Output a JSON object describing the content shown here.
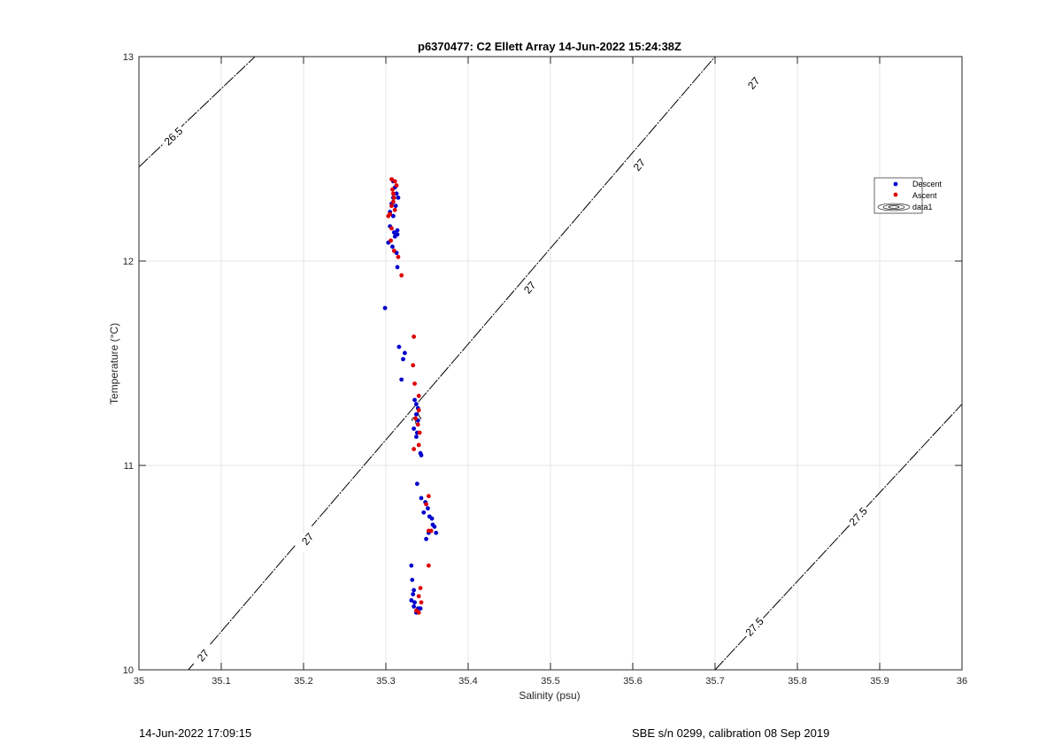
{
  "chart_data": {
    "type": "scatter",
    "title": "p6370477: C2 Ellett Array 14-Jun-2022 15:24:38Z",
    "xlabel": "Salinity (psu)",
    "ylabel": "Temperature (°C)",
    "xlim": [
      35,
      36
    ],
    "ylim": [
      10,
      13
    ],
    "x_ticks": [
      35,
      35.1,
      35.2,
      35.3,
      35.4,
      35.5,
      35.6,
      35.7,
      35.8,
      35.9,
      36
    ],
    "x_tick_labels": [
      "35",
      "35.1",
      "35.2",
      "35.3",
      "35.4",
      "35.5",
      "35.6",
      "35.7",
      "35.8",
      "35.9",
      "36"
    ],
    "y_ticks": [
      10,
      11,
      12,
      13
    ],
    "y_tick_labels": [
      "10",
      "11",
      "12",
      "13"
    ],
    "grid": true,
    "legend_position": "top-right",
    "legend": [
      "Descent",
      "Ascent",
      "data1"
    ],
    "colors": {
      "descent": "#0000cc",
      "ascent": "#dd0000",
      "contour": "#000000",
      "grid": "#e6e6e6",
      "axis": "#262626"
    },
    "series": [
      {
        "name": "Descent",
        "points": [
          [
            35.309,
            12.39
          ],
          [
            35.311,
            12.36
          ],
          [
            35.313,
            12.33
          ],
          [
            35.309,
            12.31
          ],
          [
            35.315,
            12.31
          ],
          [
            35.307,
            12.28
          ],
          [
            35.312,
            12.27
          ],
          [
            35.305,
            12.24
          ],
          [
            35.309,
            12.22
          ],
          [
            35.305,
            12.17
          ],
          [
            35.31,
            12.14
          ],
          [
            35.314,
            12.15
          ],
          [
            35.311,
            12.12
          ],
          [
            35.314,
            12.13
          ],
          [
            35.303,
            12.09
          ],
          [
            35.308,
            12.07
          ],
          [
            35.313,
            12.04
          ],
          [
            35.314,
            11.97
          ],
          [
            35.299,
            11.77
          ],
          [
            35.316,
            11.58
          ],
          [
            35.323,
            11.55
          ],
          [
            35.321,
            11.52
          ],
          [
            35.319,
            11.42
          ],
          [
            35.335,
            11.32
          ],
          [
            35.337,
            11.3
          ],
          [
            35.339,
            11.28
          ],
          [
            35.337,
            11.25
          ],
          [
            35.339,
            11.22
          ],
          [
            35.334,
            11.18
          ],
          [
            35.338,
            11.16
          ],
          [
            35.337,
            11.14
          ],
          [
            35.342,
            11.06
          ],
          [
            35.343,
            11.05
          ],
          [
            35.338,
            10.91
          ],
          [
            35.343,
            10.84
          ],
          [
            35.348,
            10.82
          ],
          [
            35.351,
            10.79
          ],
          [
            35.346,
            10.77
          ],
          [
            35.353,
            10.75
          ],
          [
            35.356,
            10.74
          ],
          [
            35.357,
            10.71
          ],
          [
            35.359,
            10.7
          ],
          [
            35.361,
            10.67
          ],
          [
            35.352,
            10.67
          ],
          [
            35.349,
            10.64
          ],
          [
            35.331,
            10.51
          ],
          [
            35.332,
            10.44
          ],
          [
            35.334,
            10.39
          ],
          [
            35.333,
            10.37
          ],
          [
            35.331,
            10.34
          ],
          [
            35.335,
            10.33
          ],
          [
            35.334,
            10.31
          ],
          [
            35.339,
            10.3
          ],
          [
            35.342,
            10.3
          ],
          [
            35.337,
            10.28
          ]
        ]
      },
      {
        "name": "Ascent",
        "points": [
          [
            35.307,
            12.4
          ],
          [
            35.311,
            12.39
          ],
          [
            35.313,
            12.37
          ],
          [
            35.308,
            12.35
          ],
          [
            35.309,
            12.33
          ],
          [
            35.31,
            12.31
          ],
          [
            35.309,
            12.29
          ],
          [
            35.307,
            12.27
          ],
          [
            35.311,
            12.25
          ],
          [
            35.305,
            12.23
          ],
          [
            35.303,
            12.22
          ],
          [
            35.307,
            12.16
          ],
          [
            35.306,
            12.1
          ],
          [
            35.31,
            12.05
          ],
          [
            35.315,
            12.02
          ],
          [
            35.319,
            11.93
          ],
          [
            35.334,
            11.63
          ],
          [
            35.333,
            11.49
          ],
          [
            35.335,
            11.4
          ],
          [
            35.34,
            11.34
          ],
          [
            35.34,
            11.27
          ],
          [
            35.336,
            11.23
          ],
          [
            35.339,
            11.2
          ],
          [
            35.341,
            11.16
          ],
          [
            35.34,
            11.1
          ],
          [
            35.334,
            11.08
          ],
          [
            35.352,
            10.85
          ],
          [
            35.349,
            10.81
          ],
          [
            35.352,
            10.68
          ],
          [
            35.355,
            10.68
          ],
          [
            35.352,
            10.51
          ],
          [
            35.342,
            10.4
          ],
          [
            35.34,
            10.36
          ],
          [
            35.343,
            10.33
          ],
          [
            35.337,
            10.29
          ],
          [
            35.34,
            10.28
          ]
        ]
      }
    ],
    "contours": [
      {
        "level": "26.5",
        "points": [
          [
            35.0,
            12.46
          ],
          [
            35.141,
            13.0
          ]
        ],
        "labels": [
          [
            35.042,
            12.61,
            "26.5"
          ]
        ]
      },
      {
        "level": "27",
        "points": [
          [
            35.06,
            10.0
          ],
          [
            35.7,
            13.0
          ]
        ],
        "labels": [
          [
            35.078,
            10.07,
            "27"
          ],
          [
            35.205,
            10.64,
            "27"
          ],
          [
            35.338,
            11.23,
            "27"
          ],
          [
            35.475,
            11.87,
            "27"
          ],
          [
            35.608,
            12.47,
            "27"
          ],
          [
            35.747,
            12.87,
            "27"
          ]
        ]
      },
      {
        "level": "27.5",
        "points": [
          [
            35.7,
            10.0
          ],
          [
            36.0,
            11.3
          ]
        ],
        "labels": [
          [
            35.748,
            10.21,
            "27.5"
          ],
          [
            35.874,
            10.75,
            "27.5"
          ]
        ]
      }
    ]
  },
  "footer": {
    "date": "14-Jun-2022 17:09:15",
    "instrument": "SBE s/n 0299, calibration 08 Sep 2019"
  }
}
